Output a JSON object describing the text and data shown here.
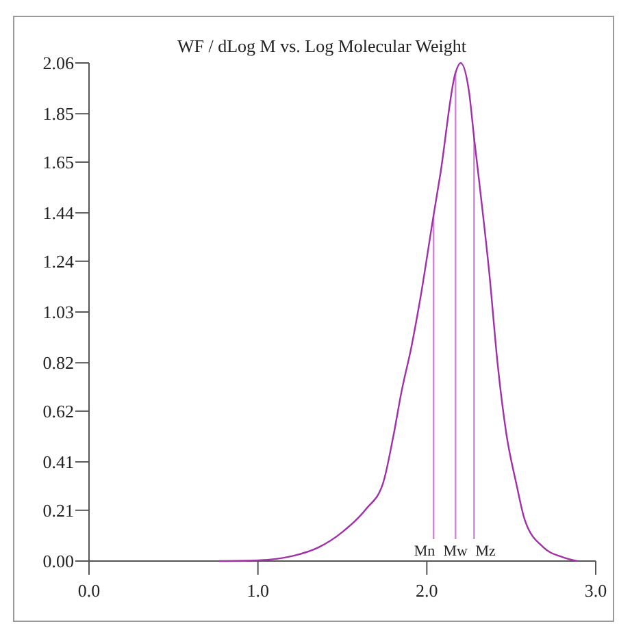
{
  "chart_data": {
    "type": "line",
    "title": "WF / dLog M vs. Log Molecular Weight",
    "series": [
      {
        "color": "#a030a8",
        "x": [
          0.77,
          1.0,
          1.2,
          1.36,
          1.5,
          1.64,
          1.74,
          1.8,
          1.85,
          1.91,
          1.96,
          2.04,
          2.08,
          2.17,
          2.2,
          2.25,
          2.28,
          2.31,
          2.37,
          2.42,
          2.47,
          2.53,
          2.58,
          2.69,
          2.8,
          2.89
        ],
        "values": [
          0,
          0.003,
          0.02,
          0.057,
          0.12,
          0.215,
          0.32,
          0.51,
          0.7,
          0.89,
          1.08,
          1.43,
          1.6,
          2.02,
          2.06,
          1.94,
          1.75,
          1.57,
          1.19,
          0.81,
          0.53,
          0.32,
          0.17,
          0.057,
          0.017,
          0
        ]
      }
    ],
    "xlim": [
      0,
      3
    ],
    "xticks": [
      {
        "value": 0,
        "label": "0.0"
      },
      {
        "value": 1,
        "label": "1.0"
      },
      {
        "value": 2,
        "label": "2.0"
      },
      {
        "value": 3,
        "label": "3.0"
      }
    ],
    "ylim": [
      0,
      2.06
    ],
    "yticks": [
      {
        "value": 0,
        "label": "0.00"
      },
      {
        "value": 0.21,
        "label": "0.21"
      },
      {
        "value": 0.41,
        "label": "0.41"
      },
      {
        "value": 0.62,
        "label": "0.62"
      },
      {
        "value": 0.82,
        "label": "0.82"
      },
      {
        "value": 1.03,
        "label": "1.03"
      },
      {
        "value": 1.24,
        "label": "1.24"
      },
      {
        "value": 1.44,
        "label": "1.44"
      },
      {
        "value": 1.65,
        "label": "1.65"
      },
      {
        "value": 1.85,
        "label": "1.85"
      },
      {
        "value": 2.06,
        "label": "2.06"
      }
    ],
    "ref_lines": [
      {
        "axis": "x",
        "value": 2.04,
        "label": "Mn",
        "color": "#cc88d0"
      },
      {
        "axis": "x",
        "value": 2.17,
        "label": "Mw",
        "color": "#cc88d0"
      },
      {
        "axis": "x",
        "value": 2.28,
        "label": "Mz",
        "color": "#cc88d0"
      }
    ],
    "grid": false,
    "marker": "none",
    "line_style": "solid"
  }
}
